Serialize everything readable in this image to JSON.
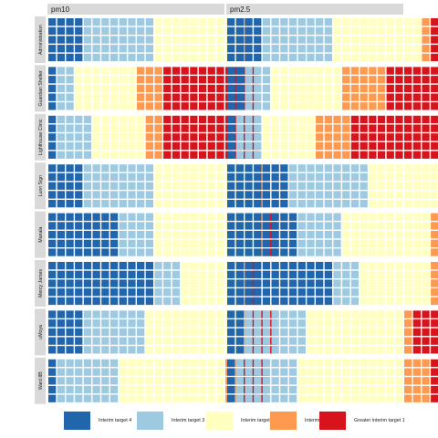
{
  "chart_data": {
    "type": "waffle",
    "grid_rows": 5,
    "panel_columns": [
      "pm10",
      "pm2.5"
    ],
    "panel_rows": [
      "Administration",
      "Guardian Shelter",
      "Lighthouse Clinic",
      "Lunn Sign",
      "Manala",
      "Mercy James",
      "uMoya",
      "Ward 8B"
    ],
    "categories": [
      "Interim target 4",
      "Interim target 3",
      "Interim target 2",
      "Interim target 1",
      "Greater interim target 1"
    ],
    "colors": {
      "Interim target 4": "#2166ac",
      "Interim target 3": "#9ecae1",
      "Interim target 2": "#ffffbf",
      "Interim target 1": "#fd9a4f",
      "Greater interim target 1": "#d7141c"
    },
    "counts": [
      [
        [
          20,
          40,
          50,
          5,
          0
        ],
        [
          20,
          40,
          50,
          5,
          5
        ]
      ],
      [
        [
          5,
          10,
          35,
          15,
          55
        ],
        [
          10,
          15,
          40,
          25,
          40
        ]
      ],
      [
        [
          5,
          20,
          30,
          10,
          55
        ],
        [
          5,
          15,
          30,
          20,
          50
        ]
      ],
      [
        [
          20,
          40,
          60,
          5,
          0
        ],
        [
          35,
          45,
          40,
          5,
          0
        ]
      ],
      [
        [
          40,
          20,
          60,
          5,
          5
        ],
        [
          40,
          25,
          50,
          5,
          5
        ]
      ],
      [
        [
          60,
          15,
          35,
          5,
          5
        ],
        [
          60,
          15,
          40,
          5,
          5
        ]
      ],
      [
        [
          20,
          35,
          55,
          5,
          15
        ],
        [
          10,
          35,
          55,
          5,
          20
        ]
      ],
      [
        [
          5,
          35,
          60,
          10,
          15
        ],
        [
          5,
          35,
          60,
          15,
          15
        ]
      ]
    ],
    "legend_position": "bottom",
    "grid": false
  }
}
